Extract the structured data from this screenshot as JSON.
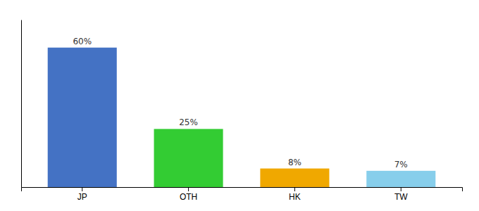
{
  "chart_data": {
    "type": "bar",
    "categories": [
      "JP",
      "OTH",
      "HK",
      "TW"
    ],
    "values": [
      60,
      25,
      8,
      7
    ],
    "value_labels": [
      "60%",
      "25%",
      "8%",
      "7%"
    ],
    "colors": [
      "#4472c4",
      "#33cc33",
      "#f0a800",
      "#87ceeb"
    ],
    "ylim": [
      0,
      72
    ],
    "data_labels": true,
    "tick_labels": "x"
  }
}
